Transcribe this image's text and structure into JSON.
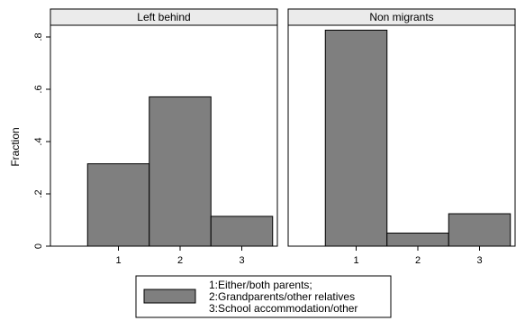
{
  "chart_data": {
    "type": "bar",
    "ylabel": "Fraction",
    "ylim": [
      0,
      0.9
    ],
    "y_ticks": [
      {
        "value": 0,
        "label": "0"
      },
      {
        "value": 0.2,
        "label": ".2"
      },
      {
        "value": 0.4,
        "label": ".4"
      },
      {
        "value": 0.6,
        "label": ".6"
      },
      {
        "value": 0.8,
        "label": ".8"
      }
    ],
    "x_ticks": [
      "1",
      "2",
      "3"
    ],
    "grid": false,
    "bar_color": "#7f7f7f",
    "panel_header_color": "#ebebeb",
    "panels": [
      {
        "title": "Left behind",
        "categories": [
          "1",
          "2",
          "3"
        ],
        "values": [
          0.315,
          0.571,
          0.114
        ]
      },
      {
        "title": "Non migrants",
        "categories": [
          "1",
          "2",
          "3"
        ],
        "values": [
          0.826,
          0.05,
          0.124
        ]
      }
    ],
    "legend": {
      "placement": "bottom",
      "lines": [
        "1:Either/both parents;",
        "2:Grandparents/other relatives",
        "3:School accommodation/other"
      ]
    }
  }
}
